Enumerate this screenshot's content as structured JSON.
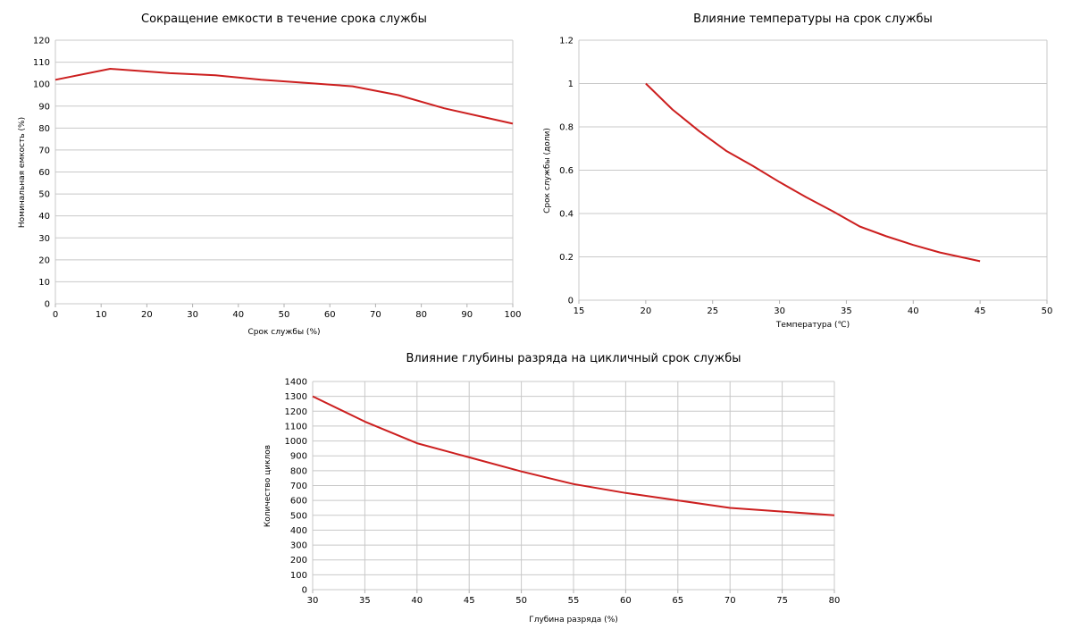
{
  "chart_data": [
    {
      "type": "line",
      "title": "Сокращение емкости в течение срока службы",
      "xlabel": "Срок службы (%)",
      "ylabel": "Номинальная емкость (%)",
      "xlim": [
        0,
        100
      ],
      "ylim": [
        0,
        120
      ],
      "x_ticks": [
        "0",
        "10",
        "20",
        "30",
        "40",
        "50",
        "60",
        "70",
        "80",
        "90",
        "100"
      ],
      "y_ticks": [
        "0",
        "10",
        "20",
        "30",
        "40",
        "50",
        "60",
        "70",
        "80",
        "90",
        "100",
        "110",
        "120"
      ],
      "grid": "horizontal",
      "series": [
        {
          "color": "#cc1f1f",
          "x": [
            0,
            12,
            25,
            35,
            45,
            55,
            65,
            75,
            85,
            100
          ],
          "y": [
            102,
            107,
            105,
            104,
            102,
            100.5,
            99,
            95,
            89,
            82
          ]
        }
      ]
    },
    {
      "type": "line",
      "title": "Влияние температуры на срок службы",
      "xlabel": "Температура (℃)",
      "ylabel": "Срок службы (доли)",
      "xlim": [
        15,
        50
      ],
      "ylim": [
        0,
        1.2
      ],
      "x_ticks": [
        "15",
        "20",
        "25",
        "30",
        "35",
        "40",
        "45",
        "50"
      ],
      "y_ticks": [
        "0",
        "0.2",
        "0.4",
        "0.6",
        "0.8",
        "1",
        "1.2"
      ],
      "grid": "horizontal",
      "series": [
        {
          "color": "#cc1f1f",
          "x": [
            20,
            22,
            24,
            26,
            28,
            30,
            32,
            34,
            36,
            38,
            40,
            42,
            45
          ],
          "y": [
            1.0,
            0.88,
            0.78,
            0.69,
            0.62,
            0.545,
            0.475,
            0.41,
            0.34,
            0.295,
            0.255,
            0.22,
            0.18
          ]
        }
      ]
    },
    {
      "type": "line",
      "title": "Влияние глубины разряда на цикличный срок службы",
      "xlabel": "Глубина разряда (%)",
      "ylabel": "Количество циклов",
      "xlim": [
        30,
        80
      ],
      "ylim": [
        0,
        1400
      ],
      "x_ticks": [
        "30",
        "35",
        "40",
        "45",
        "50",
        "55",
        "60",
        "65",
        "70",
        "75",
        "80"
      ],
      "y_ticks": [
        "0",
        "100",
        "200",
        "300",
        "400",
        "500",
        "600",
        "700",
        "800",
        "900",
        "1000",
        "1100",
        "1200",
        "1300",
        "1400"
      ],
      "grid": "both",
      "series": [
        {
          "color": "#cc1f1f",
          "x": [
            30,
            35,
            40,
            45,
            50,
            55,
            60,
            65,
            70,
            75,
            80
          ],
          "y": [
            1300,
            1130,
            985,
            890,
            795,
            710,
            650,
            600,
            550,
            525,
            500
          ]
        }
      ]
    }
  ]
}
